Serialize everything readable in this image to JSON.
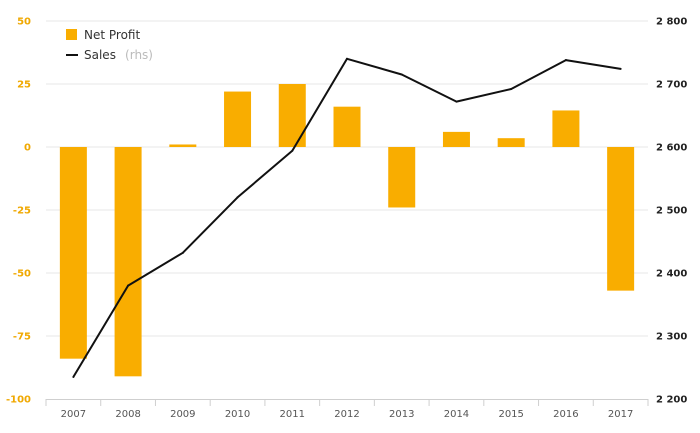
{
  "chart_data": {
    "type": "bar+line",
    "categories": [
      "2007",
      "2008",
      "2009",
      "2010",
      "2011",
      "2012",
      "2013",
      "2014",
      "2015",
      "2016",
      "2017"
    ],
    "series": [
      {
        "name": "Net Profit",
        "kind": "bar",
        "axis": "left",
        "color": "#f9ad00",
        "values": [
          -84,
          -91,
          1,
          22,
          25,
          16,
          -24,
          6,
          3.5,
          14.5,
          -57
        ]
      },
      {
        "name": "Sales",
        "name_suffix": "(rhs)",
        "kind": "line",
        "axis": "right",
        "color": "#111111",
        "values": [
          2235,
          2380,
          2432,
          2520,
          2594,
          2740,
          2715,
          2672,
          2692,
          2738,
          2724
        ]
      }
    ],
    "left_axis": {
      "min": -100,
      "max": 50,
      "ticks": [
        50,
        25,
        0,
        -25,
        -50,
        -75,
        -100
      ],
      "tick_labels": [
        "50",
        "25",
        "0",
        "-25",
        "-50",
        "-75",
        "-100"
      ]
    },
    "right_axis": {
      "min": 2200,
      "max": 2800,
      "ticks": [
        2800,
        2700,
        2600,
        2500,
        2400,
        2300,
        2200
      ],
      "tick_labels": [
        "2 800",
        "2 700",
        "2 600",
        "2 500",
        "2 400",
        "2 300",
        "2 200"
      ]
    },
    "grid": true,
    "legend_position": "top-left",
    "title": "",
    "xlabel": "",
    "ylabel": ""
  }
}
